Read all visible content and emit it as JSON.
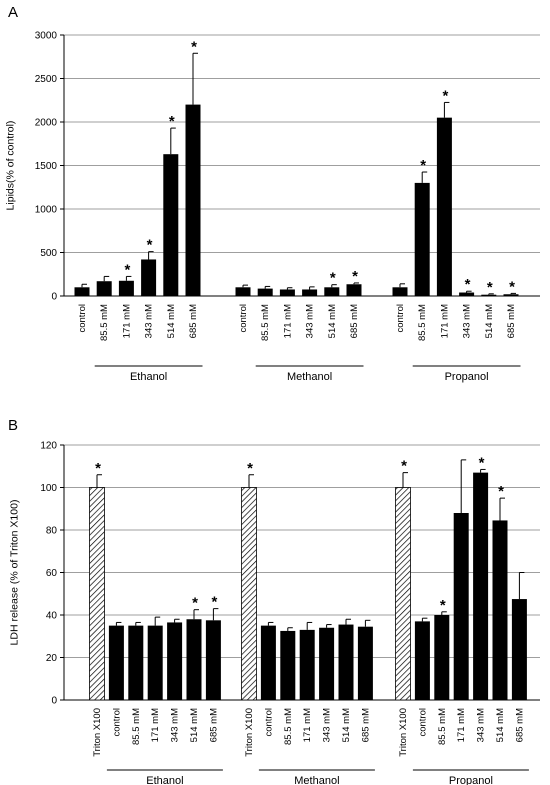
{
  "chart_data": [
    {
      "panel_label": "A",
      "type": "bar",
      "title": "",
      "xlabel": "",
      "ylabel": "Lipids(% of control)",
      "ylim": [
        0,
        3000
      ],
      "yticks": [
        0,
        500,
        1000,
        1500,
        2000,
        2500,
        3000
      ],
      "grid": true,
      "legend": "none",
      "groups": [
        {
          "name": "Ethanol",
          "categories": [
            "control",
            "85.5 mM",
            "171 mM",
            "343 mM",
            "514 mM",
            "685 mM"
          ],
          "values": [
            100,
            170,
            175,
            420,
            1630,
            2200
          ],
          "errors": [
            35,
            55,
            50,
            90,
            300,
            590
          ],
          "significant": [
            false,
            false,
            true,
            true,
            true,
            true
          ],
          "fill": [
            "solid",
            "solid",
            "solid",
            "solid",
            "solid",
            "solid"
          ]
        },
        {
          "name": "Methanol",
          "categories": [
            "control",
            "85.5 mM",
            "171 mM",
            "343 mM",
            "514 mM",
            "685 mM"
          ],
          "values": [
            100,
            85,
            75,
            75,
            100,
            135
          ],
          "errors": [
            25,
            25,
            20,
            30,
            30,
            15
          ],
          "significant": [
            false,
            false,
            false,
            false,
            true,
            true
          ],
          "fill": [
            "solid",
            "solid",
            "solid",
            "solid",
            "solid",
            "solid"
          ]
        },
        {
          "name": "Propanol",
          "categories": [
            "control",
            "85.5 mM",
            "171 mM",
            "343 mM",
            "514 mM",
            "685 mM"
          ],
          "values": [
            100,
            1300,
            2050,
            40,
            15,
            20
          ],
          "errors": [
            40,
            125,
            175,
            15,
            10,
            10
          ],
          "significant": [
            false,
            true,
            true,
            true,
            true,
            true
          ],
          "fill": [
            "solid",
            "solid",
            "solid",
            "solid",
            "solid",
            "solid"
          ]
        }
      ],
      "significance_marker": "*",
      "colors": {
        "bar": "#000000",
        "grid": "#7f7f7f",
        "axis": "#000000"
      }
    },
    {
      "panel_label": "B",
      "type": "bar",
      "title": "",
      "xlabel": "",
      "ylabel": "LDH release (% of Triton X100)",
      "ylim": [
        0,
        120
      ],
      "yticks": [
        0,
        20,
        40,
        60,
        80,
        100,
        120
      ],
      "grid": true,
      "legend": "none",
      "groups": [
        {
          "name": "Ethanol",
          "categories": [
            "Triton X100",
            "control",
            "85.5 mM",
            "171 mM",
            "343 mM",
            "514 mM",
            "685 mM"
          ],
          "values": [
            100,
            35,
            35,
            35,
            36.5,
            38,
            37.5
          ],
          "errors": [
            6,
            1.5,
            1.5,
            4,
            1.5,
            4.5,
            5.5
          ],
          "significant": [
            true,
            false,
            false,
            false,
            false,
            true,
            true
          ],
          "fill": [
            "hatched",
            "solid",
            "solid",
            "solid",
            "solid",
            "solid",
            "solid"
          ]
        },
        {
          "name": "Methanol",
          "categories": [
            "Triton X100",
            "control",
            "85.5 mM",
            "171 mM",
            "343 mM",
            "514 mM",
            "685 mM"
          ],
          "values": [
            100,
            35,
            32.5,
            33,
            34,
            35.5,
            34.5
          ],
          "errors": [
            6,
            1.5,
            1.5,
            3.5,
            1.5,
            2.5,
            3
          ],
          "significant": [
            true,
            false,
            false,
            false,
            false,
            false,
            false
          ],
          "fill": [
            "hatched",
            "solid",
            "solid",
            "solid",
            "solid",
            "solid",
            "solid"
          ]
        },
        {
          "name": "Propanol",
          "categories": [
            "Triton X100",
            "control",
            "85.5 mM",
            "171 mM",
            "343 mM",
            "514 mM",
            "685 mM"
          ],
          "values": [
            100,
            37,
            40,
            88,
            107,
            84.5,
            47.5
          ],
          "errors": [
            7,
            1.5,
            1.5,
            25,
            1.5,
            10.5,
            12.5
          ],
          "significant": [
            true,
            false,
            true,
            false,
            true,
            true,
            false
          ],
          "fill": [
            "hatched",
            "solid",
            "solid",
            "solid",
            "solid",
            "solid",
            "solid"
          ]
        }
      ],
      "significance_marker": "*",
      "colors": {
        "bar": "#000000",
        "grid": "#7f7f7f",
        "axis": "#000000"
      }
    }
  ]
}
